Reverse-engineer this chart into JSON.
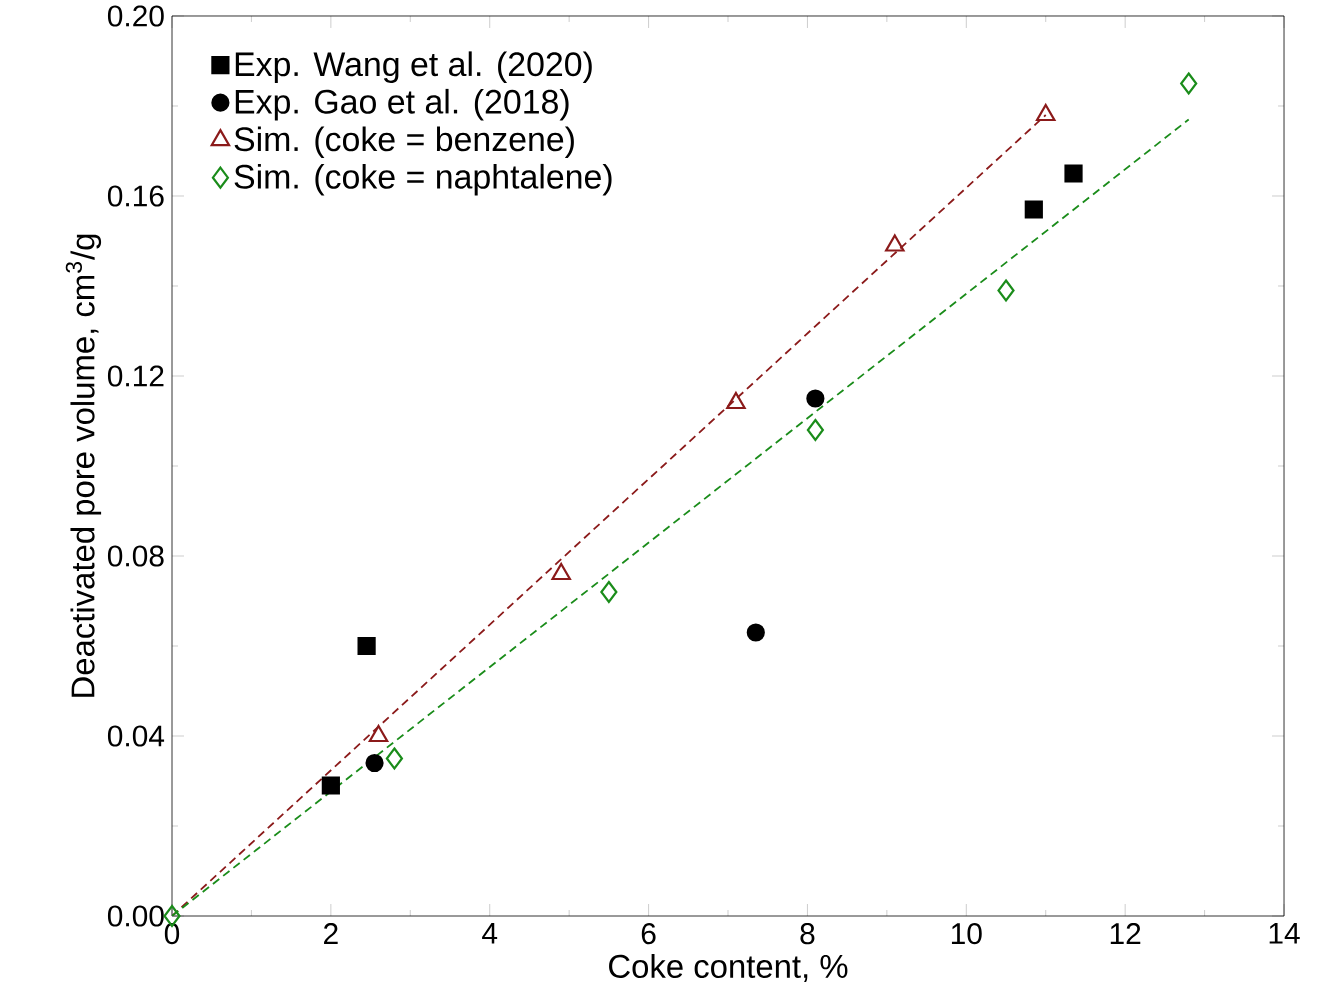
{
  "chart_data": {
    "type": "scatter",
    "xlabel": "Coke content, %",
    "ylabel": "Deactivated pore volume, cm$^{3}$/g",
    "xlim": [
      0,
      14
    ],
    "ylim": [
      0,
      0.2
    ],
    "xticks": [
      0,
      2,
      4,
      6,
      8,
      10,
      12,
      14
    ],
    "yticks": [
      {
        "value": 0,
        "label": "0.00"
      },
      0.04,
      0.08,
      0.12,
      0.16,
      {
        "value": 0.2,
        "label": "0.20"
      }
    ],
    "legend": "top left",
    "grid": false,
    "series": [
      {
        "name": "Exp. Wang et al. (2020)",
        "color": "#000000",
        "marker": "square",
        "x": [
          2.0,
          2.45,
          10.85,
          11.35
        ],
        "values": [
          0.029,
          0.06,
          0.157,
          0.165
        ]
      },
      {
        "name": "Exp. Gao et al. (2018)",
        "color": "#000000",
        "marker": "circle",
        "x": [
          2.55,
          7.35,
          8.1
        ],
        "values": [
          0.034,
          0.063,
          0.115
        ]
      },
      {
        "name": "Sim. (coke = benzene)",
        "color": "#8b1a1a",
        "marker": "triangle",
        "x": [
          2.6,
          4.9,
          7.1,
          9.1,
          11.0
        ],
        "values": [
          0.04,
          0.076,
          0.114,
          0.149,
          0.178
        ]
      },
      {
        "name": "Sim. (coke = naphtalene)",
        "color": "#1a8c1a",
        "marker": "diamond",
        "x": [
          0,
          2.8,
          5.5,
          8.1,
          10.5,
          12.8
        ],
        "values": [
          0,
          0.035,
          0.072,
          0.108,
          0.139,
          0.185
        ]
      },
      {
        "type": "line",
        "color": "#8b1a1a",
        "marker": "none",
        "line_style": "dashed",
        "x": [
          0,
          11.0
        ],
        "values": [
          0,
          0.178
        ]
      },
      {
        "type": "line",
        "color": "#1a8c1a",
        "marker": "none",
        "line_style": "dashed",
        "x": [
          0,
          12.8
        ],
        "values": [
          0,
          0.177
        ]
      }
    ]
  }
}
